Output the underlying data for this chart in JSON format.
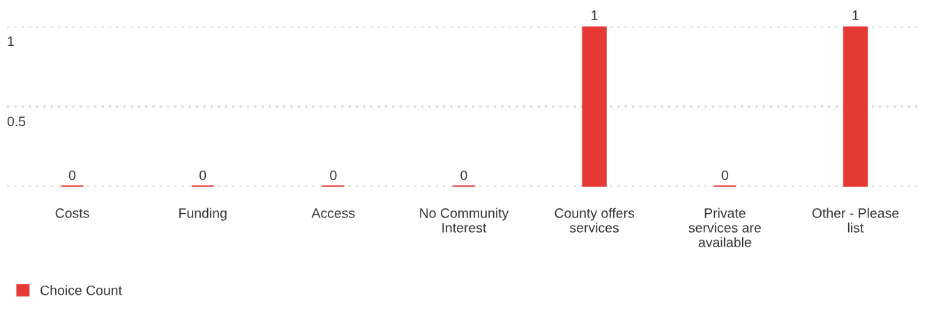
{
  "chart_data": {
    "type": "bar",
    "categories": [
      "Costs",
      "Funding",
      "Access",
      "No Community\nInterest",
      "County offers\nservices",
      "Private\nservices are\navailable",
      "Other - Please\nlist"
    ],
    "series": [
      {
        "name": "Choice Count",
        "color": "#e53935",
        "values": [
          0,
          0,
          0,
          0,
          1,
          0,
          1
        ]
      }
    ],
    "ylim": [
      0,
      1
    ],
    "yticks": [
      {
        "value": 0,
        "label": null
      },
      0.5,
      1
    ],
    "grid": "y",
    "legend": "bottom left",
    "data_labels": true
  }
}
